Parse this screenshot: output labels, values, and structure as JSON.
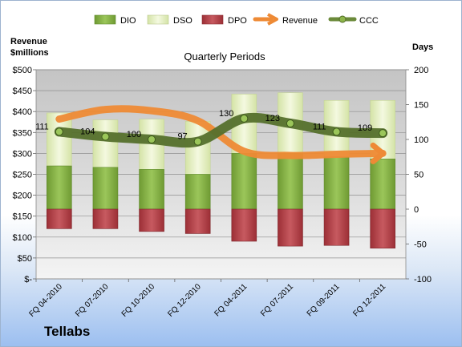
{
  "company": "Tellabs",
  "chart_data": {
    "type": "combo-stacked-bar-line",
    "title": "Quarterly Periods",
    "left_axis": {
      "title_line1": "Revenue",
      "title_line2": "$millions",
      "ticks": [
        "$-",
        "$50",
        "$100",
        "$150",
        "$200",
        "$250",
        "$300",
        "$350",
        "$400",
        "$450",
        "$500"
      ],
      "range": [
        0,
        500
      ]
    },
    "right_axis": {
      "title": "Days",
      "ticks": [
        "-100",
        "-50",
        "0",
        "50",
        "100",
        "150",
        "200"
      ],
      "range": [
        -100,
        200
      ]
    },
    "categories": [
      "FQ 04-2010",
      "FQ 07-2010",
      "FQ 10-2010",
      "FQ 12-2010",
      "FQ 04-2011",
      "FQ 07-2011",
      "FQ 09-2011",
      "FQ 12-2011"
    ],
    "legend": [
      "DIO",
      "DSO",
      "DPO",
      "Revenue",
      "CCC"
    ],
    "legend_position": "top",
    "grid": true,
    "series": [
      {
        "name": "DIO",
        "axis": "right",
        "color": "#8db54a",
        "values": [
          62,
          60,
          57,
          50,
          80,
          80,
          75,
          72
        ]
      },
      {
        "name": "DSO",
        "axis": "right",
        "color": "#e8f1c8",
        "values": [
          76,
          68,
          72,
          76,
          85,
          87,
          81,
          84
        ]
      },
      {
        "name": "DPO",
        "axis": "right",
        "color": "#b83e45",
        "values": [
          -28,
          -28,
          -32,
          -35,
          -46,
          -53,
          -52,
          -56
        ]
      },
      {
        "name": "Revenue",
        "axis": "left",
        "color": "#ee8a35",
        "values": [
          382,
          405,
          402,
          378,
          305,
          295,
          298,
          300
        ]
      },
      {
        "name": "CCC",
        "axis": "right",
        "color": "#6b8a3a",
        "values": [
          111,
          104,
          100,
          97,
          130,
          123,
          111,
          109
        ]
      }
    ],
    "ccc_labels": [
      "111",
      "104",
      "100",
      "97",
      "130",
      "123",
      "111",
      "109"
    ]
  }
}
